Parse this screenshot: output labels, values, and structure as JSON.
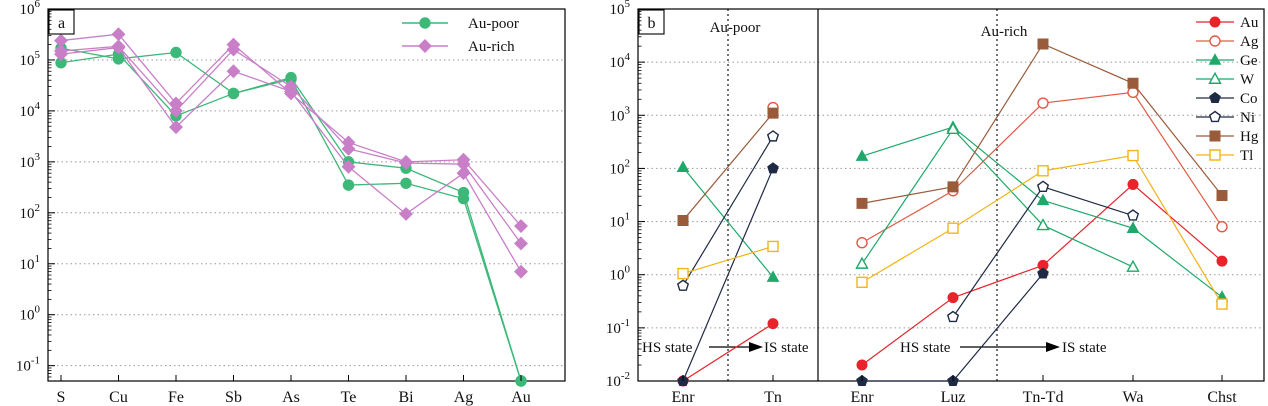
{
  "chart_data": [
    {
      "type": "line",
      "panel_label": "a",
      "y_scale": "log",
      "ylim": [
        0.05,
        1000000
      ],
      "y_ticks": [
        {
          "value": 1000000,
          "base": "10",
          "exp": "6"
        },
        {
          "value": 100000,
          "base": "10",
          "exp": "5"
        },
        {
          "value": 10000,
          "base": "10",
          "exp": "4"
        },
        {
          "value": 1000,
          "base": "10",
          "exp": "3"
        },
        {
          "value": 100,
          "base": "10",
          "exp": "2"
        },
        {
          "value": 10,
          "base": "10",
          "exp": "1"
        },
        {
          "value": 1,
          "base": "10",
          "exp": "0"
        },
        {
          "value": 0.1,
          "base": "10",
          "exp": "-1"
        }
      ],
      "categories": [
        "S",
        "Cu",
        "Fe",
        "Sb",
        "As",
        "Te",
        "Bi",
        "Ag",
        "Au"
      ],
      "grid": "dotted horizontal",
      "legend_position": "top-right",
      "legend": [
        {
          "label": "Au-poor",
          "color": "#3cb878",
          "marker": "circle"
        },
        {
          "label": "Au-rich",
          "color": "#c97fc8",
          "marker": "diamond"
        }
      ],
      "series": [
        {
          "group": "Au-poor",
          "color": "#3cb878",
          "marker": "circle",
          "values": [
            170000,
            105000,
            140000,
            22000,
            45000,
            1000,
            750,
            250,
            0.05
          ]
        },
        {
          "group": "Au-poor",
          "color": "#3cb878",
          "marker": "circle",
          "values": [
            88000,
            130000,
            8000,
            22000,
            42000,
            350,
            380,
            190,
            0.05
          ]
        },
        {
          "group": "Au-rich",
          "color": "#c97fc8",
          "marker": "diamond",
          "values": [
            240000,
            320000,
            14000,
            200000,
            22000,
            2400,
            1000,
            1100,
            55
          ]
        },
        {
          "group": "Au-rich",
          "color": "#c97fc8",
          "marker": "diamond",
          "values": [
            150000,
            185000,
            10000,
            160000,
            30000,
            1800,
            950,
            900,
            25
          ]
        },
        {
          "group": "Au-rich",
          "color": "#c97fc8",
          "marker": "diamond",
          "values": [
            130000,
            175000,
            4800,
            60000,
            24000,
            800,
            95,
            600,
            7
          ]
        }
      ]
    },
    {
      "type": "line",
      "panel_label": "b",
      "y_scale": "log",
      "ylim": [
        0.01,
        100000
      ],
      "y_ticks": [
        {
          "value": 100000,
          "base": "10",
          "exp": "5"
        },
        {
          "value": 10000,
          "base": "10",
          "exp": "4"
        },
        {
          "value": 1000,
          "base": "10",
          "exp": "3"
        },
        {
          "value": 100,
          "base": "10",
          "exp": "2"
        },
        {
          "value": 10,
          "base": "10",
          "exp": "1"
        },
        {
          "value": 1,
          "base": "10",
          "exp": "0"
        },
        {
          "value": 0.1,
          "base": "10",
          "exp": "-1"
        },
        {
          "value": 0.01,
          "base": "10",
          "exp": "-2"
        }
      ],
      "grid": "dotted horizontal",
      "legend_position": "top-right",
      "left_group": {
        "title": "Au-poor",
        "categories": [
          "Enr",
          "Tn"
        ],
        "annotation": {
          "from": "HS state",
          "to": "IS state"
        }
      },
      "right_group": {
        "title": "Au-rich",
        "categories": [
          "Enr",
          "Luz",
          "Tn-Td",
          "Wa",
          "Chst"
        ],
        "annotation": {
          "from": "HS state",
          "to": "IS state"
        }
      },
      "series": [
        {
          "name": "Au",
          "color": "#e8232b",
          "marker": "circle",
          "filled": true,
          "left": [
            0.01,
            0.12
          ],
          "right": [
            0.02,
            0.37,
            1.5,
            50,
            1.8
          ]
        },
        {
          "name": "Ag",
          "color": "#e05a44",
          "marker": "circle",
          "filled": false,
          "left": [
            null,
            1400
          ],
          "right": [
            4,
            38,
            1700,
            2700,
            8
          ]
        },
        {
          "name": "Ge",
          "color": "#1fa86a",
          "marker": "triangle",
          "filled": true,
          "left": [
            105,
            0.9
          ],
          "right": [
            170,
            600,
            25,
            7.5,
            0.38
          ]
        },
        {
          "name": "W",
          "color": "#1fa86a",
          "marker": "triangle",
          "filled": false,
          "left": [
            null,
            null
          ],
          "right": [
            1.6,
            550,
            8.5,
            1.4,
            null
          ]
        },
        {
          "name": "Co",
          "color": "#1f2a44",
          "marker": "pentagon",
          "filled": true,
          "left": [
            0.01,
            100
          ],
          "right": [
            0.01,
            0.01,
            1.05,
            null,
            null
          ]
        },
        {
          "name": "Ni",
          "color": "#1f2a44",
          "marker": "pentagon",
          "filled": false,
          "left": [
            0.62,
            400
          ],
          "right": [
            null,
            0.16,
            45,
            13,
            null
          ]
        },
        {
          "name": "Hg",
          "color": "#9a5b3a",
          "marker": "square",
          "filled": true,
          "left": [
            10.5,
            1100
          ],
          "right": [
            22,
            45,
            22000,
            4000,
            31
          ]
        },
        {
          "name": "Tl",
          "color": "#f2b416",
          "marker": "square",
          "filled": false,
          "left": [
            1.05,
            3.4
          ],
          "right": [
            0.72,
            7.5,
            90,
            175,
            0.28
          ]
        }
      ]
    }
  ]
}
